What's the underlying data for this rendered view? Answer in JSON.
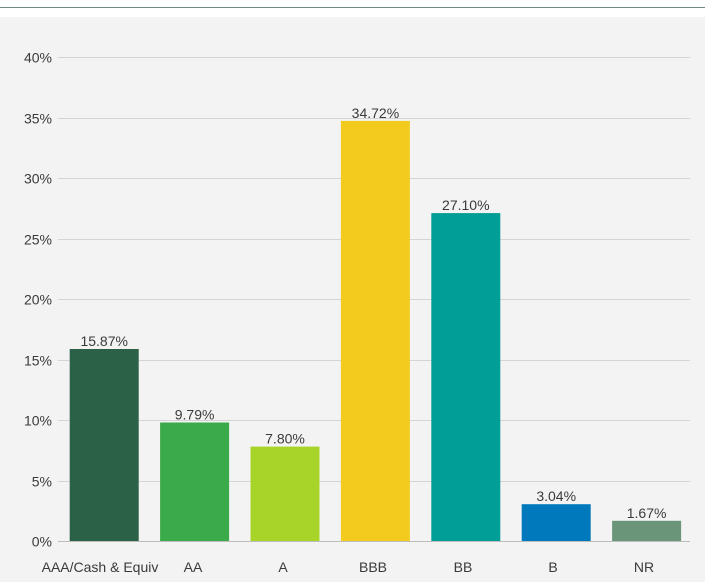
{
  "chart_data": {
    "type": "bar",
    "categories": [
      "AAA/Cash & Equiv",
      "AA",
      "A",
      "BBB",
      "BB",
      "B",
      "NR"
    ],
    "values": [
      15.87,
      9.79,
      7.8,
      34.72,
      27.1,
      3.04,
      1.67
    ],
    "value_labels": [
      "15.87%",
      "9.79%",
      "7.80%",
      "34.72%",
      "27.10%",
      "3.04%",
      "1.67%"
    ],
    "colors": [
      "#2b6147",
      "#3aaa4a",
      "#a8d42a",
      "#f2cb1e",
      "#009e96",
      "#0079bc",
      "#6b9579"
    ],
    "title": "",
    "xlabel": "",
    "ylabel": "",
    "ylim": [
      0,
      40
    ],
    "yticks": [
      0,
      5,
      10,
      15,
      20,
      25,
      30,
      35,
      40
    ],
    "ytick_labels": [
      "0%",
      "5%",
      "10%",
      "15%",
      "20%",
      "25%",
      "30%",
      "35%",
      "40%"
    ],
    "grid": true,
    "legend": "none"
  }
}
